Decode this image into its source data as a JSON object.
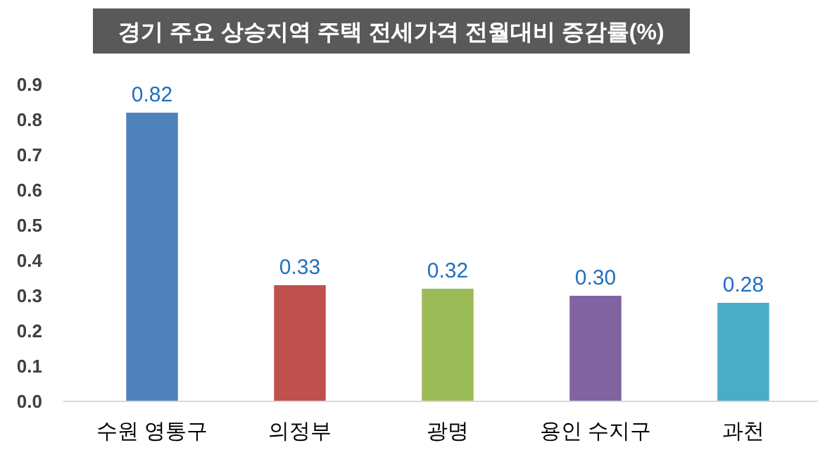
{
  "chart_data": {
    "type": "bar",
    "title": "경기 주요 상승지역 주택 전세가격 전월대비 증감률(%)",
    "categories": [
      "수원 영통구",
      "의정부",
      "광명",
      "용인 수지구",
      "과천"
    ],
    "values": [
      0.82,
      0.33,
      0.32,
      0.3,
      0.28
    ],
    "colors": [
      "#4f81bd",
      "#c0504d",
      "#9bbb59",
      "#8064a2",
      "#4bacc6"
    ],
    "value_labels": [
      "0.82",
      "0.33",
      "0.32",
      "0.30",
      "0.28"
    ],
    "ylim": [
      0,
      0.9
    ],
    "yticks": [
      {
        "value": 0,
        "label": "0.0"
      },
      0.1,
      0.2,
      0.3,
      0.4,
      0.5,
      0.6,
      0.7,
      0.8,
      0.9
    ],
    "grid": false
  }
}
